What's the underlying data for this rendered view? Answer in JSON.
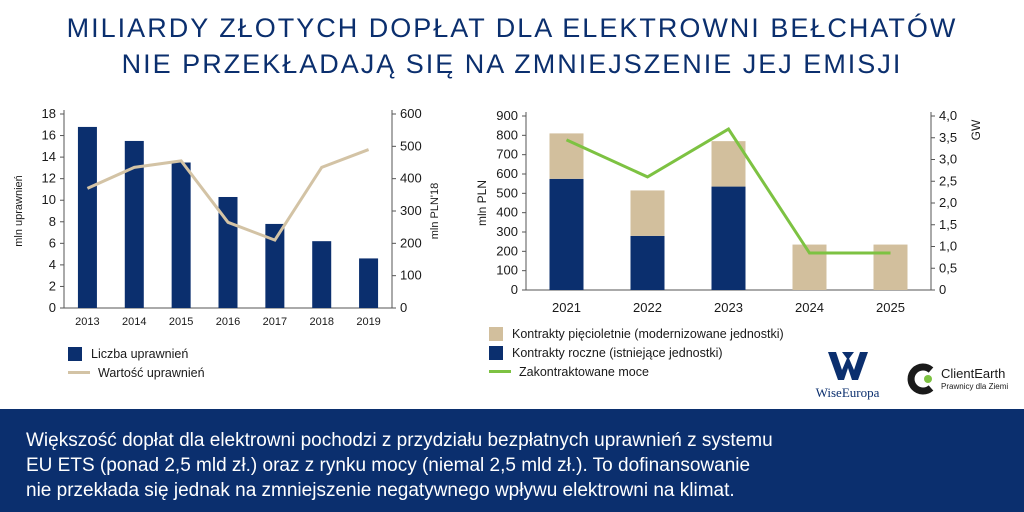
{
  "header": {
    "title_line1": "MILIARDY ZŁOTYCH DOPŁAT DLA ELEKTROWNI BEŁCHATÓW",
    "title_line2": "NIE PRZEKŁADAJĄ SIĘ NA ZMNIEJSZENIE JEJ EMISJI"
  },
  "colors": {
    "navy": "#0b2f6e",
    "tan": "#d2bf9d",
    "green": "#7dc242",
    "beige_line": "#d3c3a5"
  },
  "chart_data": [
    {
      "type": "bar",
      "categories": [
        "2013",
        "2014",
        "2015",
        "2016",
        "2017",
        "2018",
        "2019"
      ],
      "series": [
        {
          "name": "Liczba uprawnień",
          "axis": "left",
          "type": "bar",
          "values": [
            16.8,
            15.5,
            13.5,
            10.3,
            7.8,
            6.2,
            4.6
          ]
        },
        {
          "name": "Wartość uprawnień",
          "axis": "right",
          "type": "line",
          "values": [
            370,
            435,
            455,
            265,
            210,
            435,
            490
          ]
        }
      ],
      "yleft": {
        "label": "mln uprawnień",
        "range": [
          0,
          18
        ],
        "ticks": [
          "0",
          "2",
          "4",
          "6",
          "8",
          "10",
          "12",
          "14",
          "16",
          "18"
        ]
      },
      "yright": {
        "label": "mln PLN'18",
        "range": [
          0,
          600
        ],
        "ticks": [
          "0",
          "100",
          "200",
          "300",
          "400",
          "500",
          "600"
        ]
      },
      "legend": [
        "Liczba uprawnień",
        "Wartość uprawnień"
      ]
    },
    {
      "type": "bar",
      "stacked": true,
      "categories": [
        "2021",
        "2022",
        "2023",
        "2024",
        "2025"
      ],
      "series": [
        {
          "name": "Kontrakty roczne (istniejące jednostki)",
          "axis": "left",
          "type": "bar",
          "values": [
            575,
            280,
            535,
            0,
            0
          ]
        },
        {
          "name": "Kontrakty pięcioletnie (modernizowane jednostki)",
          "axis": "left",
          "type": "bar",
          "values": [
            235,
            235,
            235,
            235,
            235
          ]
        },
        {
          "name": "Zakontraktowane moce",
          "axis": "right",
          "type": "line",
          "values": [
            3.45,
            2.6,
            3.7,
            0.85,
            0.85
          ]
        }
      ],
      "yleft": {
        "label": "mln PLN",
        "range": [
          0,
          900
        ],
        "ticks": [
          "0",
          "100",
          "200",
          "300",
          "400",
          "500",
          "600",
          "700",
          "800",
          "900"
        ]
      },
      "yright": {
        "label": "GW",
        "range": [
          0,
          4.0
        ],
        "ticks": [
          "0",
          "0,5",
          "1,0",
          "1,5",
          "2,0",
          "2,5",
          "3,0",
          "3,5",
          "4,0"
        ]
      },
      "legend": [
        "Kontrakty pięcioletnie (modernizowane jednostki)",
        "Kontrakty roczne (istniejące jednostki)",
        "Zakontraktowane moce"
      ]
    }
  ],
  "logos": {
    "wiseeuropa": "WiseEuropa",
    "clientearth_name": "ClientEarth",
    "clientearth_tagline": "Prawnicy dla Ziemi"
  },
  "footer": {
    "text_line1": "Większość dopłat dla elektrowni pochodzi z przydziału bezpłatnych uprawnień z systemu",
    "text_line2": "EU ETS (ponad 2,5 mld zł.) oraz z rynku mocy (niemal 2,5 mld zł.). To dofinansowanie",
    "text_line3": "nie przekłada się jednak na zmniejszenie negatywnego wpływu elektrowni na klimat."
  }
}
